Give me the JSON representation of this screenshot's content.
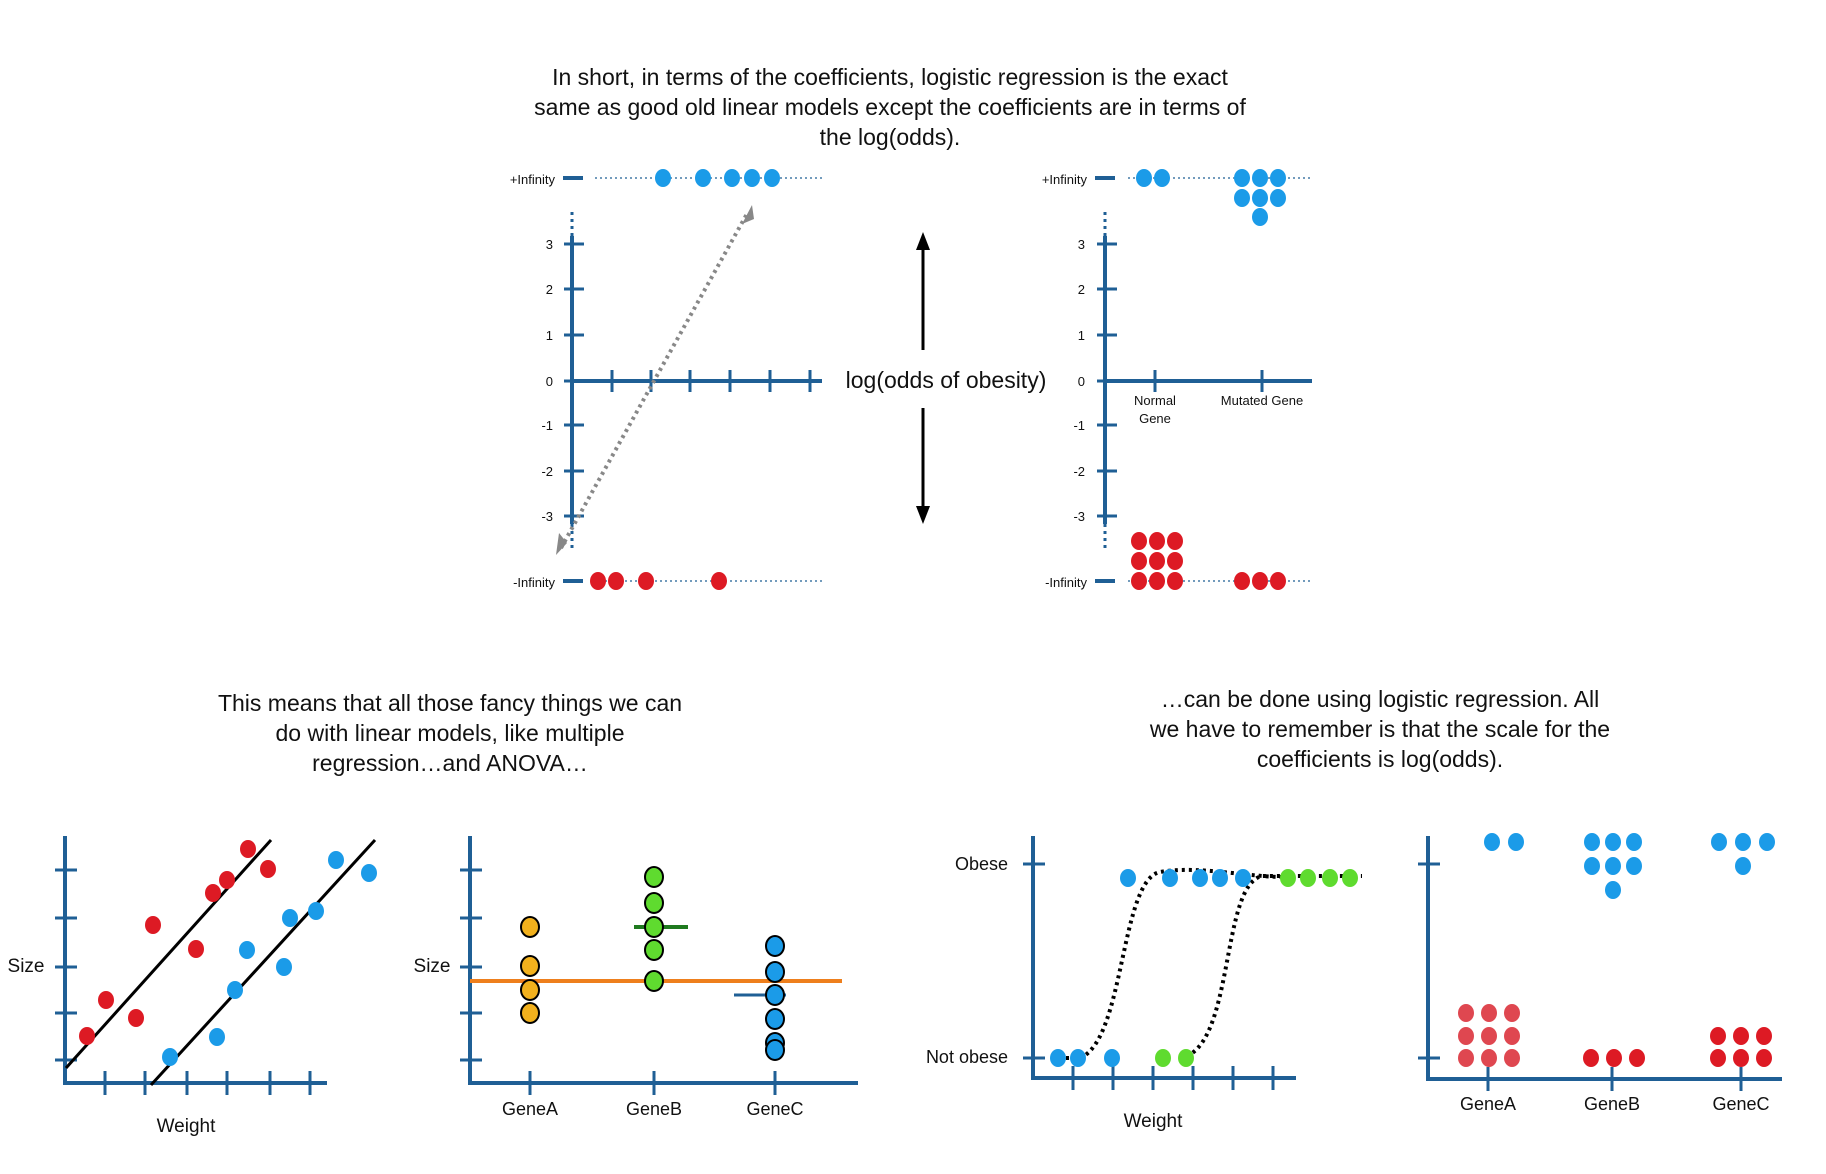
{
  "colors": {
    "axis": "#1f5f95",
    "blue": "#1b9be8",
    "red": "#dd1a24",
    "red_light": "#df4750",
    "green": "#5fdb2f",
    "green_dark": "#1f7a1f",
    "yellow": "#f2b11d",
    "orange": "#ee7f1d",
    "gray": "#888888",
    "black": "#000000"
  },
  "captions": {
    "top": [
      "In short, in terms of the coefficients, logistic regression is the exact",
      "same as good old linear models except the coefficients are in terms of",
      "the log(odds)."
    ],
    "left": [
      "This means that all those fancy things we can",
      "do with linear models, like multiple",
      "regression…and ANOVA…"
    ],
    "right": [
      "…can be done using logistic regression. All",
      "we have to remember is that the scale for the",
      "coefficients is log(odds)."
    ]
  },
  "center_label": "log(odds of obesity)",
  "logodds_axis": {
    "top_label": "+Infinity",
    "bottom_label": "-Infinity",
    "ticks": [
      "3",
      "2",
      "1",
      "0",
      "-1",
      "-2",
      "-3"
    ]
  },
  "top_left_panel": {
    "blue_points_at_plus_infinity": 5,
    "red_points_at_minus_infinity": 4
  },
  "top_right_panel": {
    "categories": [
      {
        "label_lines": [
          "Normal",
          "Gene"
        ],
        "blue_points": 2,
        "red_points": 9
      },
      {
        "label_lines": [
          "Mutated Gene"
        ],
        "blue_points": 7,
        "red_points": 3
      }
    ]
  },
  "bottom_panels": {
    "regression": {
      "ylabel": "Size",
      "xlabel": "Weight"
    },
    "anova": {
      "ylabel": "Size",
      "categories": [
        "GeneA",
        "GeneB",
        "GeneC"
      ]
    },
    "logistic": {
      "y_top": "Obese",
      "y_bottom": "Not obese",
      "xlabel": "Weight"
    },
    "categorical": {
      "categories": [
        "GeneA",
        "GeneB",
        "GeneC"
      ]
    }
  }
}
